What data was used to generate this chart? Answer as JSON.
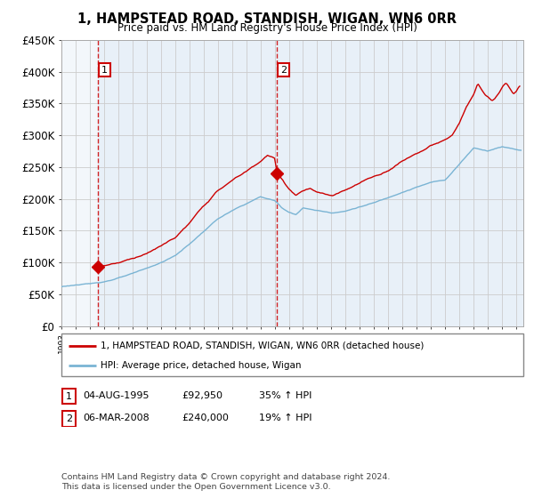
{
  "title": "1, HAMPSTEAD ROAD, STANDISH, WIGAN, WN6 0RR",
  "subtitle": "Price paid vs. HM Land Registry's House Price Index (HPI)",
  "ylim": [
    0,
    450000
  ],
  "yticks": [
    0,
    50000,
    100000,
    150000,
    200000,
    250000,
    300000,
    350000,
    400000,
    450000
  ],
  "ytick_labels": [
    "£0",
    "£50K",
    "£100K",
    "£150K",
    "£200K",
    "£250K",
    "£300K",
    "£350K",
    "£400K",
    "£450K"
  ],
  "xlim_start": 1993.0,
  "xlim_end": 2025.5,
  "transaction1_x": 1995.58,
  "transaction1_y": 92950,
  "transaction2_x": 2008.17,
  "transaction2_y": 240000,
  "legend_line1": "1, HAMPSTEAD ROAD, STANDISH, WIGAN, WN6 0RR (detached house)",
  "legend_line2": "HPI: Average price, detached house, Wigan",
  "table_row1": [
    "1",
    "04-AUG-1995",
    "£92,950",
    "35% ↑ HPI"
  ],
  "table_row2": [
    "2",
    "06-MAR-2008",
    "£240,000",
    "19% ↑ HPI"
  ],
  "footer": "Contains HM Land Registry data © Crown copyright and database right 2024.\nThis data is licensed under the Open Government Licence v3.0.",
  "red_color": "#cc0000",
  "hpi_color": "#7ab4d4",
  "grid_color": "#cccccc",
  "bg_color": "#e8f0f8",
  "hatch_color": "#c8c8d8"
}
